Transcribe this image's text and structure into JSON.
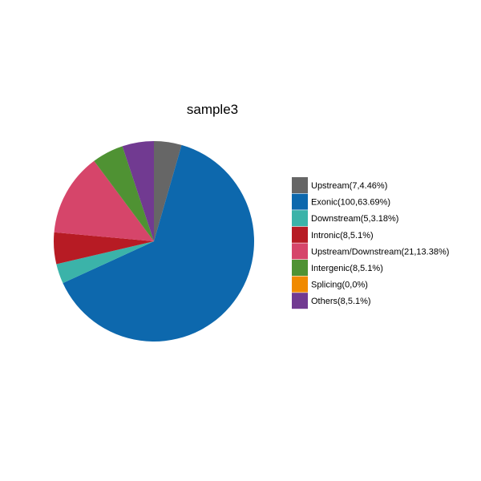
{
  "chart_data": {
    "type": "pie",
    "title": "sample3",
    "legend_position": "right",
    "start_angle": "12 o'clock, clockwise",
    "slices": [
      {
        "label": "Upstream(7,4.46%)",
        "value": 7,
        "percent": 4.46,
        "color": "#666666"
      },
      {
        "label": "Exonic(100,63.69%)",
        "value": 100,
        "percent": 63.69,
        "color": "#0d68ad"
      },
      {
        "label": "Downstream(5,3.18%)",
        "value": 5,
        "percent": 3.18,
        "color": "#3bb3a9"
      },
      {
        "label": "Intronic(8,5.1%)",
        "value": 8,
        "percent": 5.1,
        "color": "#b71b24"
      },
      {
        "label": "Upstream/Downstream(21,13.38%)",
        "value": 21,
        "percent": 13.38,
        "color": "#d6456a"
      },
      {
        "label": "Intergenic(8,5.1%)",
        "value": 8,
        "percent": 5.1,
        "color": "#4f9233"
      },
      {
        "label": "Splicing(0,0%)",
        "value": 0,
        "percent": 0,
        "color": "#f08a00"
      },
      {
        "label": "Others(8,5.1%)",
        "value": 8,
        "percent": 5.1,
        "color": "#713a91"
      }
    ]
  }
}
